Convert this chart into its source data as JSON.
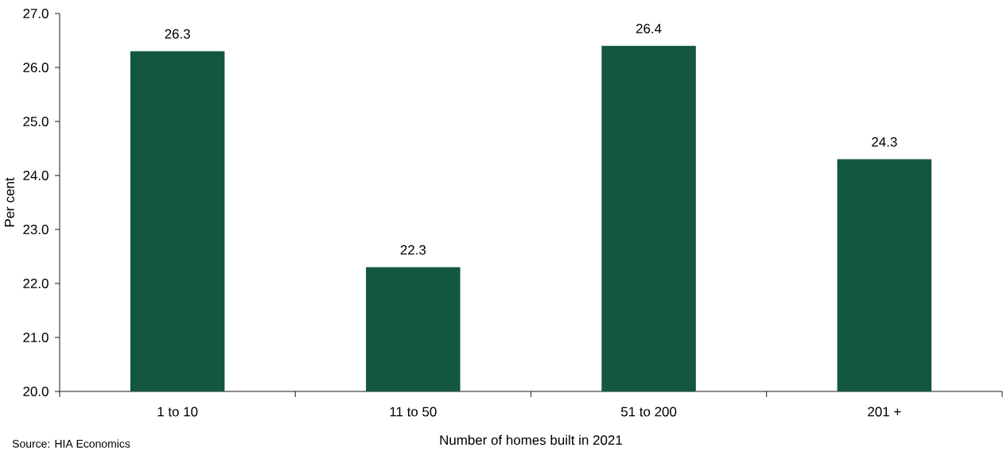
{
  "chart_data": {
    "type": "bar",
    "categories": [
      "1 to 10",
      "11 to 50",
      "51 to 200",
      "201 +"
    ],
    "values": [
      26.3,
      22.3,
      26.4,
      24.3
    ],
    "color": "#135741",
    "xlabel": "Number of homes built in 2021",
    "ylabel": "Per cent",
    "ylim": [
      20,
      27
    ],
    "yticks": [
      {
        "value": 20,
        "label": "20.0"
      },
      {
        "value": 21,
        "label": "21.0"
      },
      {
        "value": 22,
        "label": "22.0"
      },
      {
        "value": 23,
        "label": "23.0"
      },
      {
        "value": 24,
        "label": "24.0"
      },
      {
        "value": 25,
        "label": "25.0"
      },
      {
        "value": 26,
        "label": "26.0"
      },
      {
        "value": 27,
        "label": "27.0"
      }
    ],
    "data_labels": true,
    "annotations": [
      "Source: HIA Economics"
    ]
  }
}
